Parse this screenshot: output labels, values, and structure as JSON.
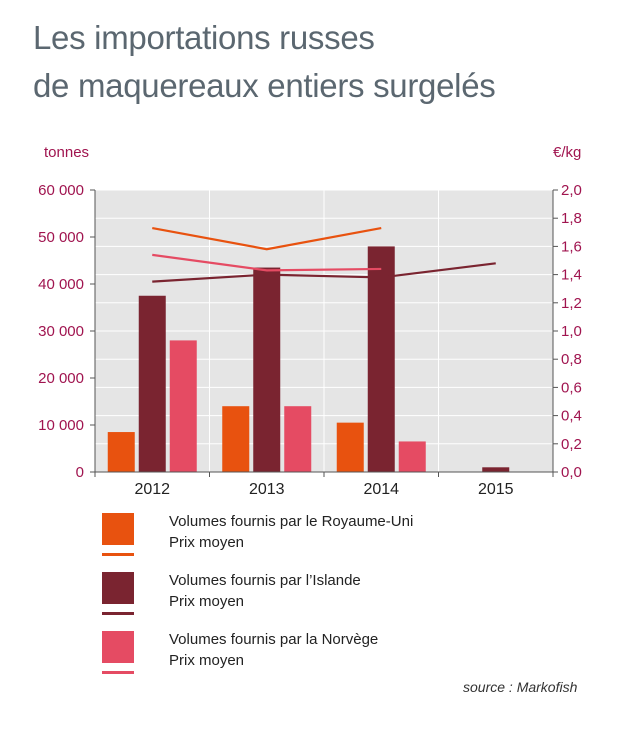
{
  "title_line1": "Les importations russes",
  "title_line2": "de maquereaux entiers surgelés",
  "source": "source : Markofish",
  "chart_data": {
    "type": "bar",
    "categories": [
      "2012",
      "2013",
      "2014",
      "2015"
    ],
    "left_axis": {
      "unit": "tonnes",
      "ylim": [
        0,
        60000
      ],
      "ticks": [
        "0",
        "10 000",
        "20 000",
        "30 000",
        "40 000",
        "50 000",
        "60 000"
      ],
      "tick_values": [
        0,
        10000,
        20000,
        30000,
        40000,
        50000,
        60000
      ]
    },
    "right_axis": {
      "unit": "€/kg",
      "ylim": [
        0,
        2.0
      ],
      "ticks": [
        "0,0",
        "0,2",
        "0,4",
        "0,6",
        "0,8",
        "1,0",
        "1,2",
        "1,4",
        "1,6",
        "1,8",
        "2,0"
      ],
      "tick_values": [
        0,
        0.2,
        0.4,
        0.6,
        0.8,
        1.0,
        1.2,
        1.4,
        1.6,
        1.8,
        2.0
      ]
    },
    "grid": true,
    "bar_series": [
      {
        "name": "Volumes fournis par le Royaume-Uni",
        "color": "#e8520f",
        "values": [
          8500,
          14000,
          10500,
          null
        ]
      },
      {
        "name": "Volumes fournis par l’Islande",
        "color": "#7a2430",
        "values": [
          37500,
          43500,
          48000,
          1000
        ]
      },
      {
        "name": "Volumes fournis par la Norvège",
        "color": "#e54b63",
        "values": [
          28000,
          14000,
          6500,
          null
        ]
      }
    ],
    "line_series": [
      {
        "name": "Prix moyen",
        "color": "#e8520f",
        "values": [
          1.73,
          1.58,
          1.73,
          null
        ]
      },
      {
        "name": "Prix moyen",
        "color": "#7a2430",
        "values": [
          1.35,
          1.4,
          1.38,
          1.48
        ]
      },
      {
        "name": "Prix moyen",
        "color": "#e54b63",
        "values": [
          1.54,
          1.43,
          1.44,
          null
        ]
      }
    ]
  },
  "legend": [
    {
      "label": "Volumes fournis par le Royaume-Uni",
      "sub": "Prix moyen",
      "color": "#e8520f"
    },
    {
      "label": "Volumes fournis par l’Islande",
      "sub": "Prix moyen",
      "color": "#7a2430"
    },
    {
      "label": "Volumes fournis par la Norvège",
      "sub": "Prix moyen",
      "color": "#e54b63"
    }
  ]
}
